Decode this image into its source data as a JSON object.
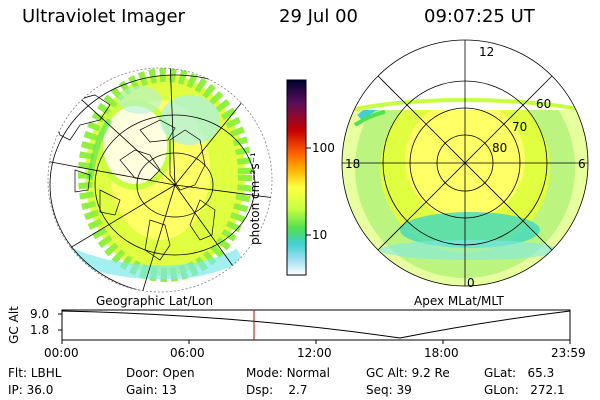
{
  "header": {
    "title": "Ultraviolet Imager",
    "date": "29 Jul 00",
    "time": "09:07:25 UT"
  },
  "left_panel": {
    "caption": "Geographic Lat/Lon"
  },
  "colorbar": {
    "unit_label": "photon cm⁻²s⁻¹",
    "ticks": [
      "100",
      "10"
    ],
    "colors": [
      "#000030",
      "#5a0f5a",
      "#c80000",
      "#ff6600",
      "#ffb000",
      "#ffff40",
      "#c8ff40",
      "#50e050",
      "#40d0d0",
      "#a0e0f0",
      "#ffffff"
    ]
  },
  "right_panel": {
    "caption": "Apex MLat/MLT",
    "mlt_labels": {
      "top": "12",
      "left": "18",
      "right": "6",
      "bottom": "0"
    },
    "lat_labels": [
      "60",
      "70",
      "80"
    ]
  },
  "altitude_plot": {
    "ylabel": "GC Alt",
    "yticks": [
      "9.0",
      "1.8"
    ],
    "xticks": [
      "00:00",
      "06:00",
      "12:00",
      "18:00",
      "23:59"
    ],
    "marker_time": "09:07"
  },
  "info": {
    "flt_label": "Flt:",
    "flt_value": "LBHL",
    "ip_label": "IP:",
    "ip_value": "36.0",
    "door_label": "Door:",
    "door_value": "Open",
    "gain_label": "Gain:",
    "gain_value": "13",
    "mode_label": "Mode:",
    "mode_value": "Normal",
    "dsp_label": "Dsp:",
    "dsp_value": "2.7",
    "gcalt_label": "GC Alt:",
    "gcalt_value": "9.2 Re",
    "seq_label": "Seq:",
    "seq_value": "39",
    "glat_label": "GLat:",
    "glat_value": "65.3",
    "glon_label": "GLon:",
    "glon_value": "272.1"
  }
}
